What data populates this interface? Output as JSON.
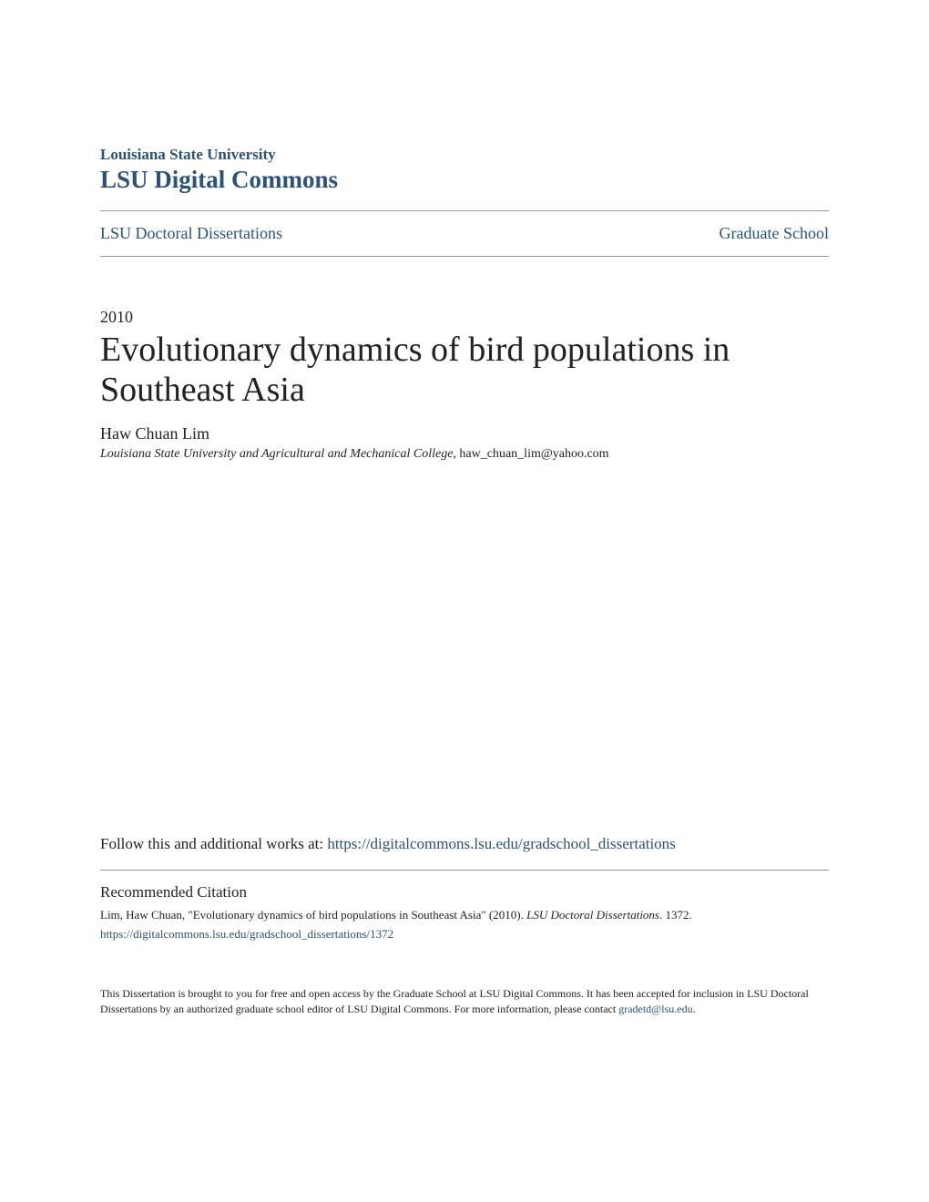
{
  "header": {
    "institution": "Louisiana State University",
    "site_name": "LSU Digital Commons"
  },
  "breadcrumb": {
    "left": "LSU Doctoral Dissertations",
    "right": "Graduate School"
  },
  "document": {
    "year": "2010",
    "title": "Evolutionary dynamics of bird populations in Southeast Asia",
    "author": "Haw Chuan Lim",
    "affiliation_italic": "Louisiana State University and Agricultural and Mechanical College",
    "affiliation_email": ", haw_chuan_lim@yahoo.com"
  },
  "follow": {
    "prefix": "Follow this and additional works at: ",
    "link_text": "https://digitalcommons.lsu.edu/gradschool_dissertations"
  },
  "citation": {
    "heading": "Recommended Citation",
    "text_before_series": "Lim, Haw Chuan, \"Evolutionary dynamics of bird populations in Southeast Asia\" (2010). ",
    "series": "LSU Doctoral Dissertations",
    "text_after_series": ". 1372.",
    "link": "https://digitalcommons.lsu.edu/gradschool_dissertations/1372"
  },
  "footer": {
    "text_before_link": "This Dissertation is brought to you for free and open access by the Graduate School at LSU Digital Commons. It has been accepted for inclusion in LSU Doctoral Dissertations by an authorized graduate school editor of LSU Digital Commons. For more information, please contact ",
    "link_text": "gradetd@lsu.edu",
    "text_after_link": "."
  },
  "colors": {
    "link": "#2b5278",
    "text": "#222222",
    "divider": "#999999",
    "background": "#ffffff"
  },
  "typography": {
    "title_fontsize": 38,
    "site_fontsize": 27,
    "body_fontsize": 17,
    "citation_fontsize": 13,
    "footer_fontsize": 12,
    "font_family": "Georgia, serif"
  }
}
